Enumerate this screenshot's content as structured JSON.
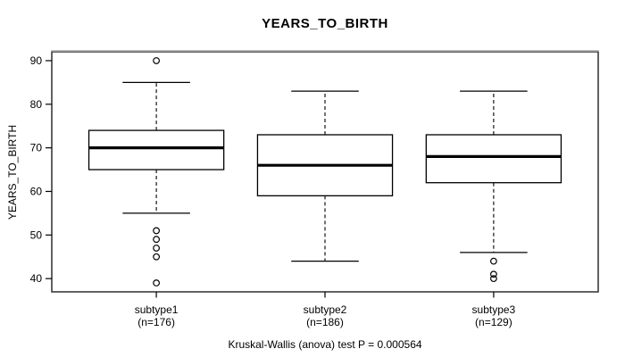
{
  "title": "YEARS_TO_BIRTH",
  "caption": "Kruskal-Wallis (anova) test P = 0.000564",
  "colors": {
    "line": "#000000",
    "box_fill": "#ffffff",
    "background": "#ffffff",
    "frame": "#2e2e2e",
    "frame_top_shadow": "#949494"
  },
  "chart_data": {
    "type": "boxplot",
    "title": "YEARS_TO_BIRTH",
    "xlabel": "",
    "ylabel": "YEARS_TO_BIRTH",
    "ylim": [
      36.96,
      92.04
    ],
    "yticks": [
      40,
      50,
      60,
      70,
      80,
      90
    ],
    "grid": false,
    "legend": "none",
    "annotation": "Kruskal-Wallis (anova) test P = 0.000564",
    "groups": [
      {
        "label": "subtype1",
        "sublabel": "(n=176)",
        "n": 176,
        "whisker_low": 55,
        "q1": 65,
        "median": 70,
        "q3": 74,
        "whisker_high": 85,
        "outliers": [
          90,
          51,
          49,
          47,
          45,
          39
        ]
      },
      {
        "label": "subtype2",
        "sublabel": "(n=186)",
        "n": 186,
        "whisker_low": 44,
        "q1": 59,
        "median": 66,
        "q3": 73,
        "whisker_high": 83,
        "outliers": []
      },
      {
        "label": "subtype3",
        "sublabel": "(n=129)",
        "n": 129,
        "whisker_low": 46,
        "q1": 62,
        "median": 68,
        "q3": 73,
        "whisker_high": 83,
        "outliers": [
          44,
          41,
          40
        ]
      }
    ]
  }
}
